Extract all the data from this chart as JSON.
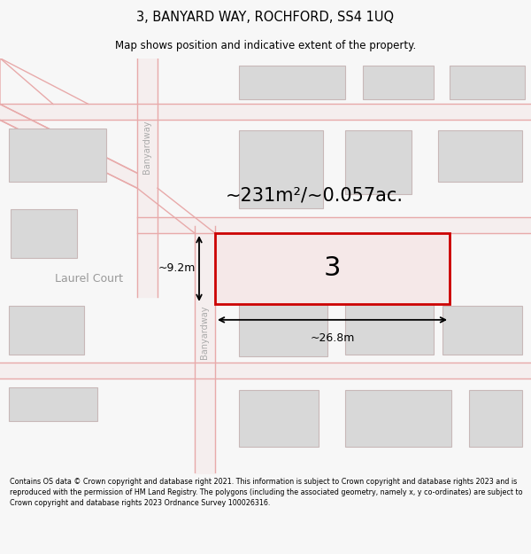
{
  "title": "3, BANYARD WAY, ROCHFORD, SS4 1UQ",
  "subtitle": "Map shows position and indicative extent of the property.",
  "footer_text": "Contains OS data © Crown copyright and database right 2021. This information is subject to Crown copyright and database rights 2023 and is reproduced with the permission of HM Land Registry. The polygons (including the associated geometry, namely x, y co-ordinates) are subject to Crown copyright and database rights 2023 Ordnance Survey 100026316.",
  "bg_color": "#f7f7f7",
  "map_bg": "#f0eeee",
  "road_color": "#e8aaaa",
  "road_fill": "#f5eeee",
  "building_fill": "#d8d8d8",
  "building_edge": "#c8b8b8",
  "highlight_color": "#cc0000",
  "area_text": "~231m²/~0.057ac.",
  "dim_width_text": "~26.8m",
  "dim_height_text": "~9.2m",
  "road_label": "Banyardway",
  "laurel_label": "Laurel Court"
}
